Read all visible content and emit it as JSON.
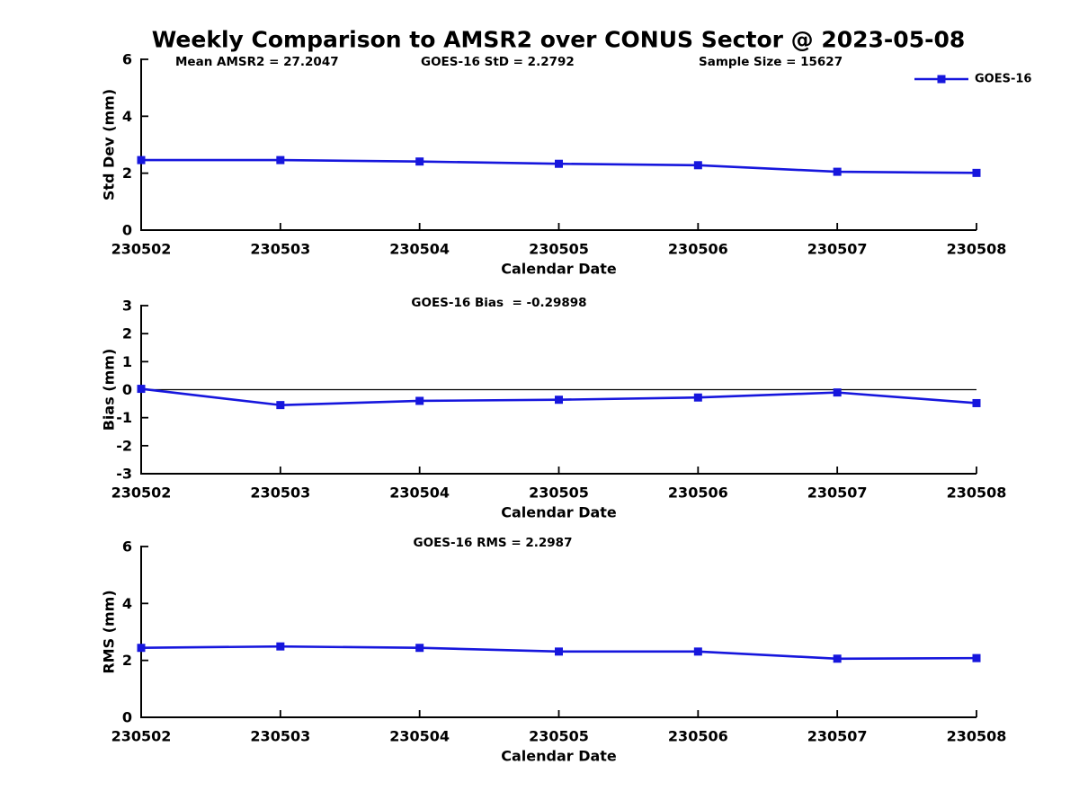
{
  "figure": {
    "title": "Weekly Comparison to AMSR2 over CONUS Sector @ 2023-05-08",
    "background_color": "#ffffff",
    "line_color": "#1616dd",
    "axis_color": "#000000",
    "text_color": "#000000"
  },
  "legend": {
    "label": "GOES-16"
  },
  "chart_data": [
    {
      "type": "line",
      "name": "std-dev",
      "headers": [
        "Mean AMSR2 = 27.2047",
        "GOES-16 StD = 2.2792",
        "Sample Size = 15627"
      ],
      "categories": [
        "230502",
        "230503",
        "230504",
        "230505",
        "230506",
        "230507",
        "230508"
      ],
      "series": [
        {
          "name": "GOES-16",
          "values": [
            2.46,
            2.46,
            2.41,
            2.33,
            2.28,
            2.05,
            2.01
          ]
        }
      ],
      "xlabel": "Calendar Date",
      "ylabel": "Std Dev (mm)",
      "ylim": [
        0,
        6
      ],
      "yticks": [
        0,
        2,
        4,
        6
      ],
      "grid": false,
      "legend_position": "top-right"
    },
    {
      "type": "line",
      "name": "bias",
      "headers": [
        "GOES-16 Bias  = -0.29898"
      ],
      "categories": [
        "230502",
        "230503",
        "230504",
        "230505",
        "230506",
        "230507",
        "230508"
      ],
      "series": [
        {
          "name": "GOES-16",
          "values": [
            0.03,
            -0.55,
            -0.4,
            -0.36,
            -0.28,
            -0.1,
            -0.48
          ]
        }
      ],
      "xlabel": "Calendar Date",
      "ylabel": "Bias (mm)",
      "ylim": [
        -3,
        3
      ],
      "yticks": [
        3,
        2,
        1,
        0,
        -1,
        -2,
        -3
      ],
      "zero_line": true,
      "grid": false
    },
    {
      "type": "line",
      "name": "rms",
      "headers": [
        "GOES-16 RMS = 2.2987"
      ],
      "categories": [
        "230502",
        "230503",
        "230504",
        "230505",
        "230506",
        "230507",
        "230508"
      ],
      "series": [
        {
          "name": "GOES-16",
          "values": [
            2.44,
            2.49,
            2.44,
            2.31,
            2.31,
            2.06,
            2.08
          ]
        }
      ],
      "xlabel": "Calendar Date",
      "ylabel": "RMS (mm)",
      "ylim": [
        0,
        6
      ],
      "yticks": [
        0,
        2,
        4,
        6
      ],
      "grid": false
    }
  ]
}
